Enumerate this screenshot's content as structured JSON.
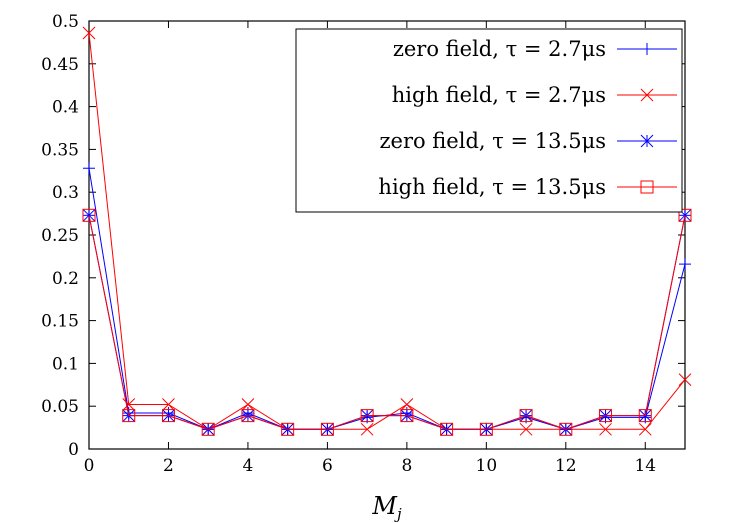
{
  "chart_data": {
    "type": "line",
    "xlabel": "M",
    "xlabel_sub": "j",
    "ylabel": "",
    "xlim": [
      0,
      15
    ],
    "ylim": [
      0,
      0.5
    ],
    "xticks": [
      "0",
      "2",
      "4",
      "6",
      "8",
      "10",
      "12",
      "14"
    ],
    "yticks": [
      "0",
      "0.05",
      "0.1",
      "0.15",
      "0.2",
      "0.25",
      "0.3",
      "0.35",
      "0.4",
      "0.45",
      "0.5"
    ],
    "grid": false,
    "legend_position": "top-right",
    "x": [
      0,
      1,
      2,
      3,
      4,
      5,
      6,
      7,
      8,
      9,
      10,
      11,
      12,
      13,
      14,
      15
    ],
    "series": [
      {
        "name": "zero field, τ = 2.7μs",
        "color": "#0000ff",
        "marker": "plus",
        "values": [
          0.328,
          0.042,
          0.042,
          0.023,
          0.042,
          0.023,
          0.023,
          0.037,
          0.042,
          0.023,
          0.023,
          0.037,
          0.023,
          0.037,
          0.037,
          0.216
        ]
      },
      {
        "name": "high field, τ = 2.7μs",
        "color": "#ff0000",
        "marker": "cross",
        "values": [
          0.486,
          0.052,
          0.052,
          0.023,
          0.052,
          0.023,
          0.023,
          0.023,
          0.052,
          0.023,
          0.023,
          0.023,
          0.023,
          0.023,
          0.023,
          0.081
        ]
      },
      {
        "name": "zero field, τ = 13.5μs",
        "color": "#0000ff",
        "marker": "star",
        "values": [
          0.273,
          0.039,
          0.039,
          0.023,
          0.039,
          0.023,
          0.023,
          0.039,
          0.039,
          0.023,
          0.023,
          0.039,
          0.023,
          0.039,
          0.039,
          0.273
        ]
      },
      {
        "name": "high field, τ = 13.5μs",
        "color": "#ff0000",
        "marker": "square",
        "values": [
          0.273,
          0.039,
          0.039,
          0.023,
          0.039,
          0.023,
          0.023,
          0.039,
          0.039,
          0.023,
          0.023,
          0.039,
          0.023,
          0.039,
          0.039,
          0.273
        ]
      }
    ]
  }
}
